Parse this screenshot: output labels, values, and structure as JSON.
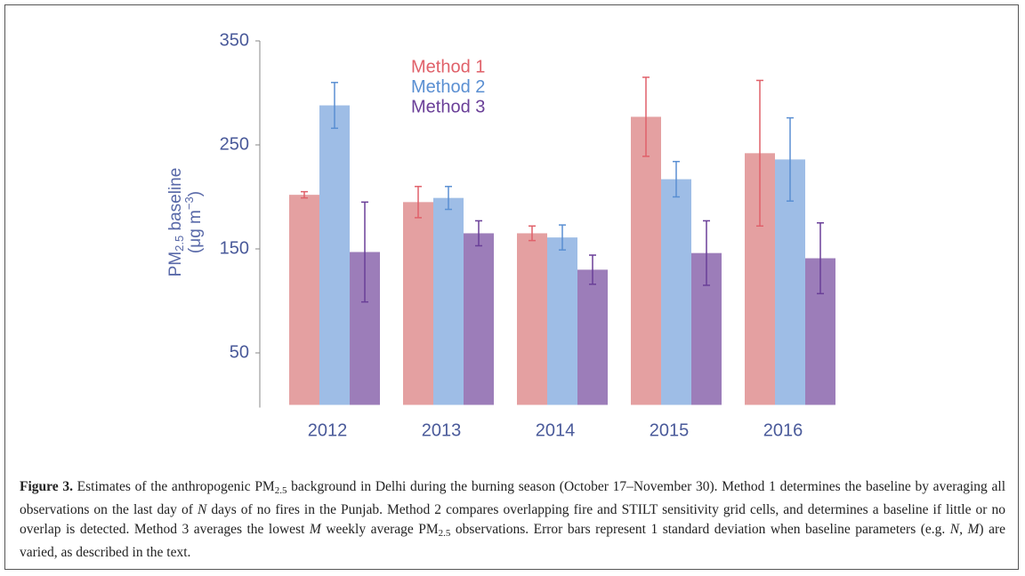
{
  "chart_data": {
    "type": "bar",
    "categories": [
      "2012",
      "2013",
      "2014",
      "2015",
      "2016"
    ],
    "series": [
      {
        "name": "Method 1",
        "color": "#e4a0a1",
        "error_color": "#e0616a",
        "values": [
          202,
          195,
          165,
          277,
          242
        ],
        "errors": [
          3,
          15,
          7,
          38,
          70
        ]
      },
      {
        "name": "Method 2",
        "color": "#9ebde6",
        "error_color": "#5a8fd2",
        "values": [
          288,
          199,
          161,
          217,
          236
        ],
        "errors": [
          22,
          11,
          12,
          17,
          40
        ]
      },
      {
        "name": "Method 3",
        "color": "#9c7db9",
        "error_color": "#6a3f98",
        "values": [
          147,
          165,
          130,
          146,
          141
        ],
        "errors": [
          48,
          12,
          14,
          31,
          34
        ]
      }
    ],
    "ylabel": {
      "line1": [
        "PM",
        "2.5",
        " baseline"
      ],
      "line2": [
        "(μg m",
        "−3",
        ")"
      ]
    },
    "ylim": [
      0,
      350
    ],
    "yticks": [
      50,
      150,
      250,
      350
    ],
    "grid": false
  },
  "caption": [
    {
      "text": "Figure 3.",
      "style": "bold"
    },
    {
      "text": " Estimates of the anthropogenic PM",
      "style": "normal"
    },
    {
      "text": "2.5",
      "style": "sub"
    },
    {
      "text": " background in Delhi during the burning season (October 17–November 30). Method 1 determines the baseline by averaging all observations on the last day of ",
      "style": "normal"
    },
    {
      "text": "N",
      "style": "italic"
    },
    {
      "text": " days of no fires in the Punjab. Method 2 compares overlapping fire and STILT sensitivity grid cells, and determines a baseline if little or no overlap is detected. Method 3 averages the lowest ",
      "style": "normal"
    },
    {
      "text": "M",
      "style": "italic"
    },
    {
      "text": " weekly average PM",
      "style": "normal"
    },
    {
      "text": "2.5",
      "style": "sub"
    },
    {
      "text": " observations. Error bars represent 1 standard deviation when baseline parameters (e.g. ",
      "style": "normal"
    },
    {
      "text": "N, M",
      "style": "italic"
    },
    {
      "text": ") are varied, as described in the text.",
      "style": "normal"
    }
  ]
}
